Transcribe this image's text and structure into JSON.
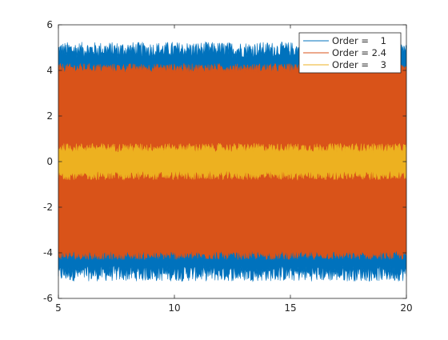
{
  "chart_data": {
    "type": "line",
    "title": "",
    "xlabel": "",
    "ylabel": "",
    "xlim": [
      5,
      20
    ],
    "ylim": [
      -6,
      6
    ],
    "xticks": [
      5,
      10,
      15,
      20
    ],
    "yticks": [
      -6,
      -4,
      -2,
      0,
      2,
      4,
      6
    ],
    "grid": false,
    "legend_position": "top-right",
    "series": [
      {
        "name": "Order =    1",
        "color": "#0072BD",
        "envelope_outer": 4.9,
        "envelope_inner": -4.9,
        "envelope_spread": 0.35
      },
      {
        "name": "Order = 2.4",
        "color": "#D95319",
        "envelope_outer": 4.1,
        "envelope_inner": -4.1,
        "envelope_spread": 0.2
      },
      {
        "name": "Order =    3",
        "color": "#EDB120",
        "envelope_outer": 0.6,
        "envelope_inner": -0.6,
        "envelope_spread": 0.2
      }
    ]
  }
}
